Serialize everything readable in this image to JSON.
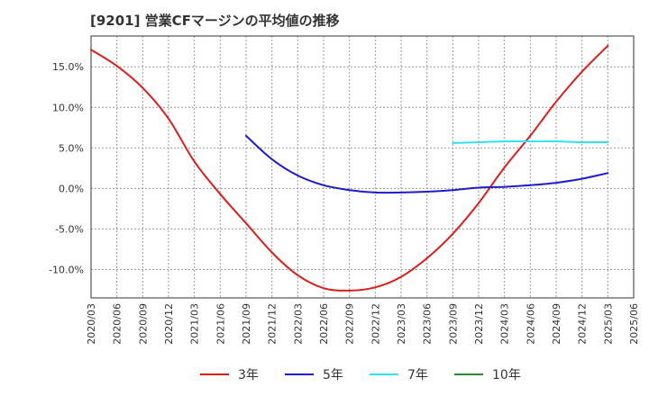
{
  "title": "[9201]  営業CFマージンの平均値の推移",
  "chart_data": {
    "type": "line",
    "title": "[9201]  営業CFマージンの平均値の推移",
    "xlabel": "",
    "ylabel": "",
    "categories": [
      "2020/03",
      "2020/06",
      "2020/09",
      "2020/12",
      "2021/03",
      "2021/06",
      "2021/09",
      "2021/12",
      "2022/03",
      "2022/06",
      "2022/09",
      "2022/12",
      "2023/03",
      "2023/06",
      "2023/09",
      "2023/12",
      "2024/03",
      "2024/06",
      "2024/09",
      "2024/12",
      "2025/03",
      "2025/06"
    ],
    "y_ticks": [
      {
        "value": 15,
        "label": "15.0%"
      },
      {
        "value": 10,
        "label": "10.0%"
      },
      {
        "value": 5,
        "label": "5.0%"
      },
      {
        "value": 0,
        "label": "0.0%"
      },
      {
        "value": -5,
        "label": "-5.0%"
      },
      {
        "value": -10,
        "label": "-10.0%"
      }
    ],
    "ylim": [
      -13.5,
      18.8
    ],
    "grid": true,
    "legend_position": "bottom",
    "series": [
      {
        "name": "3年",
        "color": "#dd1c1c",
        "values": [
          17.1,
          15.1,
          12.4,
          8.6,
          3.3,
          -0.7,
          -4.3,
          -7.9,
          -10.7,
          -12.3,
          -12.6,
          -12.2,
          -10.9,
          -8.6,
          -5.6,
          -1.8,
          2.6,
          6.5,
          10.7,
          14.4,
          17.6,
          null
        ]
      },
      {
        "name": "5年",
        "color": "#1c1ccc",
        "values": [
          null,
          null,
          null,
          null,
          null,
          null,
          6.5,
          3.6,
          1.6,
          0.4,
          -0.2,
          -0.5,
          -0.5,
          -0.4,
          -0.2,
          0.1,
          0.2,
          0.4,
          0.7,
          1.2,
          1.9,
          null
        ]
      },
      {
        "name": "7年",
        "color": "#33e0f0",
        "values": [
          null,
          null,
          null,
          null,
          null,
          null,
          null,
          null,
          null,
          null,
          null,
          null,
          null,
          null,
          5.6,
          5.7,
          5.8,
          5.8,
          5.8,
          5.7,
          5.7,
          null
        ]
      },
      {
        "name": "10年",
        "color": "#2e8b2e",
        "values": [
          null,
          null,
          null,
          null,
          null,
          null,
          null,
          null,
          null,
          null,
          null,
          null,
          null,
          null,
          null,
          null,
          null,
          null,
          null,
          null,
          null,
          null
        ]
      }
    ]
  }
}
